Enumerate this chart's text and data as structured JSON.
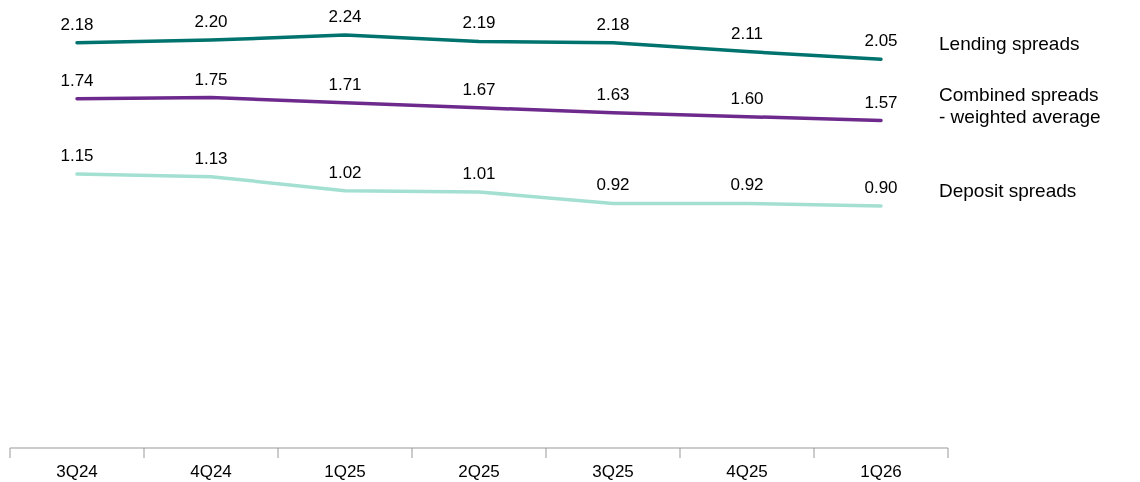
{
  "chart_data": {
    "type": "line",
    "categories": [
      "3Q24",
      "4Q24",
      "1Q25",
      "2Q25",
      "3Q25",
      "4Q25",
      "1Q26"
    ],
    "series": [
      {
        "name": "Lending spreads",
        "color": "#00736e",
        "values": [
          2.18,
          2.2,
          2.24,
          2.19,
          2.18,
          2.11,
          2.05
        ],
        "value_labels": [
          "2.18",
          "2.20",
          "2.24",
          "2.19",
          "2.18",
          "2.11",
          "2.05"
        ]
      },
      {
        "name": "Combined spreads\n- weighted average",
        "color": "#6d2a8c",
        "values": [
          1.74,
          1.75,
          1.71,
          1.67,
          1.63,
          1.6,
          1.57
        ],
        "value_labels": [
          "1.74",
          "1.75",
          "1.71",
          "1.67",
          "1.63",
          "1.60",
          "1.57"
        ]
      },
      {
        "name": "Deposit spreads",
        "color": "#a3e0d2",
        "values": [
          1.15,
          1.13,
          1.02,
          1.01,
          0.92,
          0.92,
          0.9
        ],
        "value_labels": [
          "1.15",
          "1.13",
          "1.02",
          "1.01",
          "0.92",
          "0.92",
          "0.90"
        ]
      }
    ],
    "tick_labels": "x",
    "marker": "none",
    "line_style": "solid"
  }
}
